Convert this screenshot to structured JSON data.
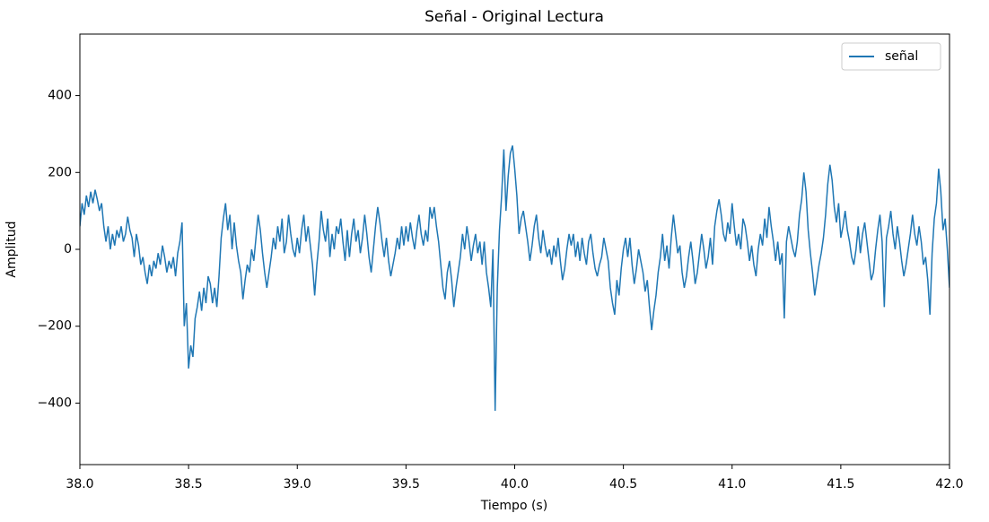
{
  "chart_data": {
    "type": "line",
    "title": "Señal - Original Lectura",
    "x_label": "Tiempo (s)",
    "y_label": "Amplitud",
    "legend": "upper right",
    "grid": false,
    "xlim": [
      38,
      42
    ],
    "ylim": [
      -560,
      560
    ],
    "xticks": [
      {
        "value": 38,
        "label": "38.0"
      },
      38.5,
      {
        "value": 39,
        "label": "39.0"
      },
      39.5,
      {
        "value": 40,
        "label": "40.0"
      },
      40.5,
      {
        "value": 41,
        "label": "41.0"
      },
      41.5,
      {
        "value": 42,
        "label": "42.0"
      }
    ],
    "yticks": [
      {
        "value": -400,
        "label": "−400"
      },
      {
        "value": -200,
        "label": "−200"
      },
      0,
      200,
      400
    ],
    "x": [
      38,
      38.01,
      38.02,
      38.03,
      38.04,
      38.05,
      38.06,
      38.07,
      38.08,
      38.09,
      38.1,
      38.11,
      38.12,
      38.13,
      38.14,
      38.15,
      38.16,
      38.17,
      38.18,
      38.19,
      38.2,
      38.21,
      38.22,
      38.23,
      38.24,
      38.25,
      38.26,
      38.27,
      38.28,
      38.29,
      38.3,
      38.31,
      38.32,
      38.33,
      38.34,
      38.35,
      38.36,
      38.37,
      38.38,
      38.39,
      38.4,
      38.41,
      38.42,
      38.43,
      38.44,
      38.45,
      38.46,
      38.47,
      38.48,
      38.49,
      38.5,
      38.51,
      38.52,
      38.53,
      38.54,
      38.55,
      38.56,
      38.57,
      38.58,
      38.59,
      38.6,
      38.61,
      38.62,
      38.63,
      38.64,
      38.65,
      38.66,
      38.67,
      38.68,
      38.69,
      38.7,
      38.71,
      38.72,
      38.73,
      38.74,
      38.75,
      38.76,
      38.77,
      38.78,
      38.79,
      38.8,
      38.81,
      38.82,
      38.83,
      38.84,
      38.85,
      38.86,
      38.87,
      38.88,
      38.89,
      38.9,
      38.91,
      38.92,
      38.93,
      38.94,
      38.95,
      38.96,
      38.97,
      38.98,
      38.99,
      39,
      39.01,
      39.02,
      39.03,
      39.04,
      39.05,
      39.06,
      39.07,
      39.08,
      39.09,
      39.1,
      39.11,
      39.12,
      39.13,
      39.14,
      39.15,
      39.16,
      39.17,
      39.18,
      39.19,
      39.2,
      39.21,
      39.22,
      39.23,
      39.24,
      39.25,
      39.26,
      39.27,
      39.28,
      39.29,
      39.3,
      39.31,
      39.32,
      39.33,
      39.34,
      39.35,
      39.36,
      39.37,
      39.38,
      39.39,
      39.4,
      39.41,
      39.42,
      39.43,
      39.44,
      39.45,
      39.46,
      39.47,
      39.48,
      39.49,
      39.5,
      39.51,
      39.52,
      39.53,
      39.54,
      39.55,
      39.56,
      39.57,
      39.58,
      39.59,
      39.6,
      39.61,
      39.62,
      39.63,
      39.64,
      39.65,
      39.66,
      39.67,
      39.68,
      39.69,
      39.7,
      39.71,
      39.72,
      39.73,
      39.74,
      39.75,
      39.76,
      39.77,
      39.78,
      39.79,
      39.8,
      39.81,
      39.82,
      39.83,
      39.84,
      39.85,
      39.86,
      39.87,
      39.88,
      39.89,
      39.9,
      39.91,
      39.92,
      39.93,
      39.94,
      39.95,
      39.96,
      39.97,
      39.98,
      39.99,
      40,
      40.01,
      40.02,
      40.03,
      40.04,
      40.05,
      40.06,
      40.07,
      40.08,
      40.09,
      40.1,
      40.11,
      40.12,
      40.13,
      40.14,
      40.15,
      40.16,
      40.17,
      40.18,
      40.19,
      40.2,
      40.21,
      40.22,
      40.23,
      40.24,
      40.25,
      40.26,
      40.27,
      40.28,
      40.29,
      40.3,
      40.31,
      40.32,
      40.33,
      40.34,
      40.35,
      40.36,
      40.37,
      40.38,
      40.39,
      40.4,
      40.41,
      40.42,
      40.43,
      40.44,
      40.45,
      40.46,
      40.47,
      40.48,
      40.49,
      40.5,
      40.51,
      40.52,
      40.53,
      40.54,
      40.55,
      40.56,
      40.57,
      40.58,
      40.59,
      40.6,
      40.61,
      40.62,
      40.63,
      40.64,
      40.65,
      40.66,
      40.67,
      40.68,
      40.69,
      40.7,
      40.71,
      40.72,
      40.73,
      40.74,
      40.75,
      40.76,
      40.77,
      40.78,
      40.79,
      40.8,
      40.81,
      40.82,
      40.83,
      40.84,
      40.85,
      40.86,
      40.87,
      40.88,
      40.89,
      40.9,
      40.91,
      40.92,
      40.93,
      40.94,
      40.95,
      40.96,
      40.97,
      40.98,
      40.99,
      41,
      41.01,
      41.02,
      41.03,
      41.04,
      41.05,
      41.06,
      41.07,
      41.08,
      41.09,
      41.1,
      41.11,
      41.12,
      41.13,
      41.14,
      41.15,
      41.16,
      41.17,
      41.18,
      41.19,
      41.2,
      41.21,
      41.22,
      41.23,
      41.24,
      41.25,
      41.26,
      41.27,
      41.28,
      41.29,
      41.3,
      41.31,
      41.32,
      41.33,
      41.34,
      41.35,
      41.36,
      41.37,
      41.38,
      41.39,
      41.4,
      41.41,
      41.42,
      41.43,
      41.44,
      41.45,
      41.46,
      41.47,
      41.48,
      41.49,
      41.5,
      41.51,
      41.52,
      41.53,
      41.54,
      41.55,
      41.56,
      41.57,
      41.58,
      41.59,
      41.6,
      41.61,
      41.62,
      41.63,
      41.64,
      41.65,
      41.66,
      41.67,
      41.68,
      41.69,
      41.7,
      41.71,
      41.72,
      41.73,
      41.74,
      41.75,
      41.76,
      41.77,
      41.78,
      41.79,
      41.8,
      41.81,
      41.82,
      41.83,
      41.84,
      41.85,
      41.86,
      41.87,
      41.88,
      41.89,
      41.9,
      41.91,
      41.92,
      41.93,
      41.94,
      41.95,
      41.96,
      41.97,
      41.98,
      41.99,
      42
    ],
    "series": [
      {
        "name": "señal",
        "color": "#1f77b4",
        "values": [
          60,
          120,
          90,
          140,
          110,
          150,
          120,
          155,
          130,
          100,
          120,
          60,
          20,
          60,
          0,
          40,
          10,
          50,
          30,
          60,
          20,
          40,
          85,
          50,
          30,
          -20,
          40,
          10,
          -40,
          -20,
          -60,
          -90,
          -40,
          -70,
          -30,
          -50,
          -10,
          -40,
          10,
          -20,
          -60,
          -30,
          -50,
          -20,
          -70,
          -10,
          20,
          70,
          -200,
          -140,
          -310,
          -250,
          -280,
          -180,
          -150,
          -110,
          -160,
          -100,
          -140,
          -70,
          -90,
          -140,
          -100,
          -150,
          -70,
          30,
          80,
          120,
          50,
          90,
          0,
          70,
          10,
          -30,
          -60,
          -130,
          -80,
          -40,
          -60,
          0,
          -30,
          30,
          90,
          50,
          -10,
          -60,
          -100,
          -60,
          -20,
          30,
          0,
          60,
          20,
          80,
          -10,
          20,
          90,
          40,
          0,
          -20,
          30,
          -10,
          50,
          90,
          20,
          60,
          10,
          -40,
          -120,
          -40,
          20,
          100,
          50,
          20,
          80,
          -20,
          40,
          0,
          60,
          40,
          80,
          20,
          -30,
          50,
          -20,
          40,
          80,
          20,
          50,
          -10,
          30,
          90,
          40,
          -20,
          -60,
          0,
          60,
          110,
          70,
          20,
          -20,
          30,
          -30,
          -70,
          -40,
          -10,
          30,
          0,
          60,
          10,
          60,
          20,
          70,
          30,
          0,
          50,
          90,
          40,
          10,
          50,
          20,
          110,
          80,
          110,
          60,
          20,
          -40,
          -100,
          -130,
          -60,
          -30,
          -80,
          -150,
          -100,
          -60,
          -20,
          40,
          0,
          60,
          20,
          -30,
          10,
          40,
          -10,
          20,
          -40,
          20,
          -60,
          -100,
          -150,
          0,
          -420,
          -100,
          50,
          140,
          260,
          100,
          190,
          250,
          270,
          210,
          140,
          40,
          80,
          100,
          60,
          20,
          -30,
          10,
          60,
          90,
          30,
          -10,
          50,
          10,
          -20,
          0,
          -40,
          10,
          -20,
          30,
          -30,
          -80,
          -50,
          0,
          40,
          10,
          40,
          -20,
          20,
          -30,
          30,
          -10,
          -40,
          20,
          40,
          -10,
          -50,
          -70,
          -40,
          -20,
          30,
          0,
          -30,
          -100,
          -140,
          -170,
          -80,
          -120,
          -50,
          0,
          30,
          -20,
          30,
          -40,
          -90,
          -50,
          0,
          -30,
          -60,
          -110,
          -80,
          -150,
          -210,
          -160,
          -120,
          -60,
          -20,
          40,
          -30,
          10,
          -50,
          30,
          90,
          40,
          -10,
          10,
          -60,
          -100,
          -70,
          -20,
          20,
          -30,
          -90,
          -60,
          -10,
          40,
          0,
          -50,
          -20,
          30,
          -40,
          60,
          100,
          130,
          90,
          40,
          20,
          70,
          40,
          120,
          60,
          10,
          40,
          0,
          80,
          60,
          20,
          -30,
          10,
          -40,
          -70,
          0,
          40,
          10,
          80,
          30,
          110,
          60,
          20,
          -30,
          20,
          -40,
          -10,
          -180,
          20,
          60,
          30,
          0,
          -20,
          20,
          90,
          130,
          200,
          150,
          50,
          -10,
          -60,
          -120,
          -80,
          -40,
          -10,
          30,
          90,
          170,
          220,
          180,
          110,
          70,
          120,
          30,
          60,
          100,
          50,
          20,
          -20,
          -40,
          0,
          60,
          -10,
          40,
          70,
          20,
          -30,
          -80,
          -60,
          0,
          50,
          90,
          20,
          -150,
          30,
          60,
          100,
          40,
          0,
          60,
          20,
          -30,
          -70,
          -40,
          0,
          40,
          90,
          40,
          10,
          60,
          20,
          -40,
          -20,
          -80,
          -170,
          -10,
          80,
          120,
          210,
          150,
          50,
          80,
          0,
          -100
        ]
      }
    ]
  }
}
